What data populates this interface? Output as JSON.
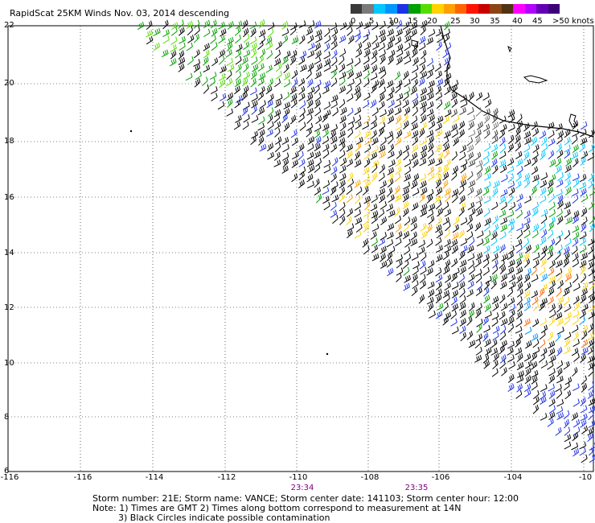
{
  "title": "RapidScat 25KM Winds Nov. 03, 2014 descending",
  "colorbar": {
    "labels": [
      "0",
      "5",
      "10",
      "15",
      "20",
      "25",
      "30",
      "35",
      "40",
      "45",
      ">50 knots"
    ],
    "colors": [
      "#3a3a3a",
      "#7a7a7a",
      "#00c8ff",
      "#0096ff",
      "#1e32e6",
      "#00a000",
      "#55dd00",
      "#ffd200",
      "#ffa000",
      "#ff6400",
      "#ff1400",
      "#c80000",
      "#8b4513",
      "#503214",
      "#ff00ff",
      "#b400ff",
      "#6400b4",
      "#3c0078"
    ]
  },
  "map": {
    "lat_labels": [
      "22",
      "20",
      "18",
      "16",
      "14",
      "12",
      "10",
      "8",
      "6"
    ],
    "lon_labels": [
      "-116",
      "-116",
      "-114",
      "-112",
      "-110",
      "-108",
      "-106",
      "-104",
      "-10"
    ],
    "time_labels": [
      "23:34",
      "23:35"
    ]
  },
  "footer": {
    "line1": "Storm number: 21E;  Storm name: VANCE;  Storm center date: 141103;  Storm center hour: 12:00",
    "line2": "Note: 1) Times are GMT  2) Times along bottom correspond to measurement at 14N",
    "line3": "3) Black Circles indicate possible contamination"
  }
}
